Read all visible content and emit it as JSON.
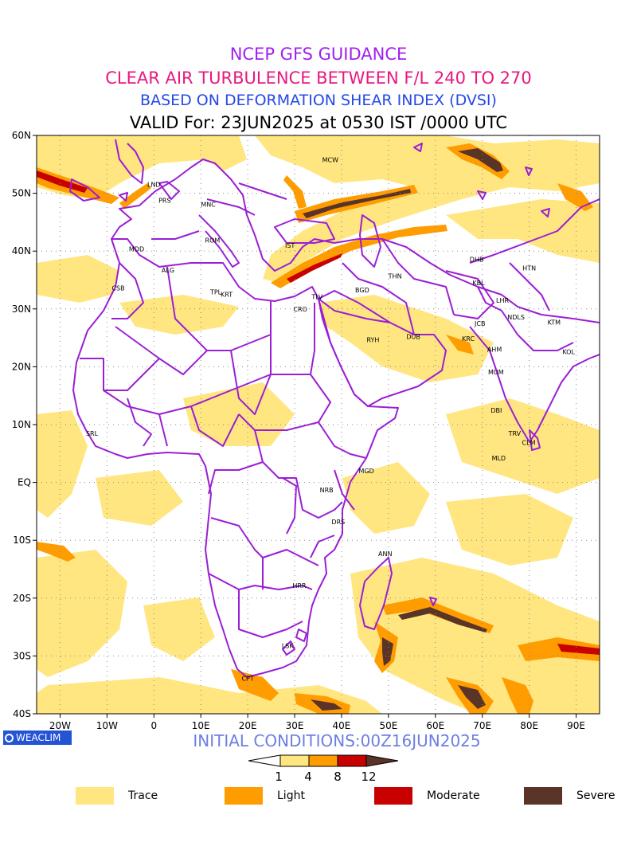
{
  "titles": {
    "line1": "NCEP GFS GUIDANCE",
    "line2": "CLEAR AIR TURBULENCE BETWEEN F/L 240 TO 270",
    "line3": "BASED ON DEFORMATION SHEAR INDEX (DVSI)",
    "line4": "VALID For: 23JUN2025 at 0530 IST /0000 UTC"
  },
  "colors": {
    "line1": "#a020f0",
    "line2": "#e8197f",
    "line3": "#2649e6",
    "line4": "#000000",
    "border": "#9b1fd4",
    "trace": "#ffe680",
    "light": "#ff9c00",
    "moderate": "#c80000",
    "severe": "#5a3427"
  },
  "map": {
    "lon_range": [
      -25,
      95
    ],
    "lat_range": [
      -40,
      60
    ],
    "lat_ticks": [
      {
        "lat": 60,
        "label": "60N"
      },
      {
        "lat": 50,
        "label": "50N"
      },
      {
        "lat": 40,
        "label": "40N"
      },
      {
        "lat": 30,
        "label": "30N"
      },
      {
        "lat": 20,
        "label": "20N"
      },
      {
        "lat": 10,
        "label": "10N"
      },
      {
        "lat": 0,
        "label": "EQ"
      },
      {
        "lat": -10,
        "label": "10S"
      },
      {
        "lat": -20,
        "label": "20S"
      },
      {
        "lat": -30,
        "label": "30S"
      },
      {
        "lat": -40,
        "label": "40S"
      }
    ],
    "lon_ticks": [
      {
        "lon": -20,
        "label": "20W"
      },
      {
        "lon": -10,
        "label": "10W"
      },
      {
        "lon": 0,
        "label": "0"
      },
      {
        "lon": 10,
        "label": "10E"
      },
      {
        "lon": 20,
        "label": "20E"
      },
      {
        "lon": 30,
        "label": "30E"
      },
      {
        "lon": 40,
        "label": "40E"
      },
      {
        "lon": 50,
        "label": "50E"
      },
      {
        "lon": 60,
        "label": "60E"
      },
      {
        "lon": 70,
        "label": "70E"
      },
      {
        "lon": 80,
        "label": "80E"
      },
      {
        "lon": 90,
        "label": "90E"
      }
    ],
    "stations": [
      {
        "code": "MCW",
        "lon": 37.6,
        "lat": 55.8
      },
      {
        "code": "LND",
        "lon": 0,
        "lat": 51.5
      },
      {
        "code": "PRS",
        "lon": 2.3,
        "lat": 48.8
      },
      {
        "code": "MNC",
        "lon": 11.6,
        "lat": 48.1
      },
      {
        "code": "ROM",
        "lon": 12.5,
        "lat": 41.9
      },
      {
        "code": "MDD",
        "lon": -3.7,
        "lat": 40.4
      },
      {
        "code": "IST",
        "lon": 29,
        "lat": 41
      },
      {
        "code": "ALG",
        "lon": 3,
        "lat": 36.7
      },
      {
        "code": "TPL",
        "lon": 13.2,
        "lat": 32.9
      },
      {
        "code": "KRT",
        "lon": 15.5,
        "lat": 32.5
      },
      {
        "code": "CSB",
        "lon": -7.6,
        "lat": 33.6
      },
      {
        "code": "CRO",
        "lon": 31.2,
        "lat": 30
      },
      {
        "code": "TLV",
        "lon": 34.8,
        "lat": 32.1
      },
      {
        "code": "BGD",
        "lon": 44.4,
        "lat": 33.3
      },
      {
        "code": "THN",
        "lon": 51.4,
        "lat": 35.7
      },
      {
        "code": "RYH",
        "lon": 46.7,
        "lat": 24.7
      },
      {
        "code": "DUB",
        "lon": 55.3,
        "lat": 25.2
      },
      {
        "code": "DHB",
        "lon": 68.8,
        "lat": 38.6
      },
      {
        "code": "KBL",
        "lon": 69.2,
        "lat": 34.5
      },
      {
        "code": "HTN",
        "lon": 80,
        "lat": 37.1
      },
      {
        "code": "LHR",
        "lon": 74.3,
        "lat": 31.5
      },
      {
        "code": "JCB",
        "lon": 69.5,
        "lat": 27.5
      },
      {
        "code": "NDLS",
        "lon": 77.2,
        "lat": 28.6
      },
      {
        "code": "KTM",
        "lon": 85.3,
        "lat": 27.7
      },
      {
        "code": "KRC",
        "lon": 67,
        "lat": 24.9
      },
      {
        "code": "AHM",
        "lon": 72.6,
        "lat": 23
      },
      {
        "code": "KOL",
        "lon": 88.4,
        "lat": 22.6
      },
      {
        "code": "MUM",
        "lon": 72.9,
        "lat": 19.1
      },
      {
        "code": "DBI",
        "lon": 73,
        "lat": 12.5
      },
      {
        "code": "TRV",
        "lon": 76.9,
        "lat": 8.5
      },
      {
        "code": "CLM",
        "lon": 79.9,
        "lat": 6.9
      },
      {
        "code": "MLD",
        "lon": 73.5,
        "lat": 4.2
      },
      {
        "code": "SRL",
        "lon": -13.2,
        "lat": 8.5
      },
      {
        "code": "MGD",
        "lon": 45.3,
        "lat": 2
      },
      {
        "code": "NRB",
        "lon": 36.8,
        "lat": -1.3
      },
      {
        "code": "DRS",
        "lon": 39.3,
        "lat": -6.8
      },
      {
        "code": "ANN",
        "lon": 49.3,
        "lat": -12.3
      },
      {
        "code": "HRR",
        "lon": 31,
        "lat": -17.8
      },
      {
        "code": "LSK",
        "lon": 28.5,
        "lat": -28.2
      },
      {
        "code": "CPT",
        "lon": 20,
        "lat": -33.9
      }
    ]
  },
  "badge": "WEACLIM",
  "initial_conditions": "INITIAL CONDITIONS:00Z16JUN2025",
  "colorbar": {
    "ticks": [
      "1",
      "4",
      "8",
      "12"
    ]
  },
  "legend": [
    {
      "label": "Trace",
      "color": "#ffe680"
    },
    {
      "label": "Light",
      "color": "#ff9c00"
    },
    {
      "label": "Moderate",
      "color": "#c80000"
    },
    {
      "label": "Severe",
      "color": "#5a3427"
    }
  ]
}
